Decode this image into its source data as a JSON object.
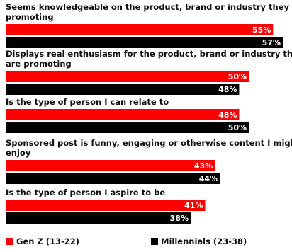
{
  "chart_data": {
    "type": "bar",
    "orientation": "horizontal",
    "unit": "%",
    "xlim": [
      0,
      57
    ],
    "grid": false,
    "legend_position": "bottom",
    "categories": [
      [
        "Seems knowledgeable on the product, brand or industry they are",
        "promoting"
      ],
      [
        "Displays real enthusiasm for the product, brand or industry they",
        "are promoting"
      ],
      [
        "Is the type of person I can relate to"
      ],
      [
        "Sponsored post is funny, engaging or otherwise content I might",
        "enjoy"
      ],
      [
        "Is the type of person I aspire to be"
      ]
    ],
    "series": [
      {
        "name": "Gen Z (13-22)",
        "color": "#ff0000",
        "values": [
          55,
          50,
          48,
          43,
          41
        ]
      },
      {
        "name": "Millennials (23-38)",
        "color": "#000000",
        "values": [
          57,
          48,
          50,
          44,
          38
        ]
      }
    ],
    "value_labels": [
      [
        "55%",
        "50%",
        "48%",
        "43%",
        "41%"
      ],
      [
        "57%",
        "48%",
        "50%",
        "44%",
        "38%"
      ]
    ]
  }
}
